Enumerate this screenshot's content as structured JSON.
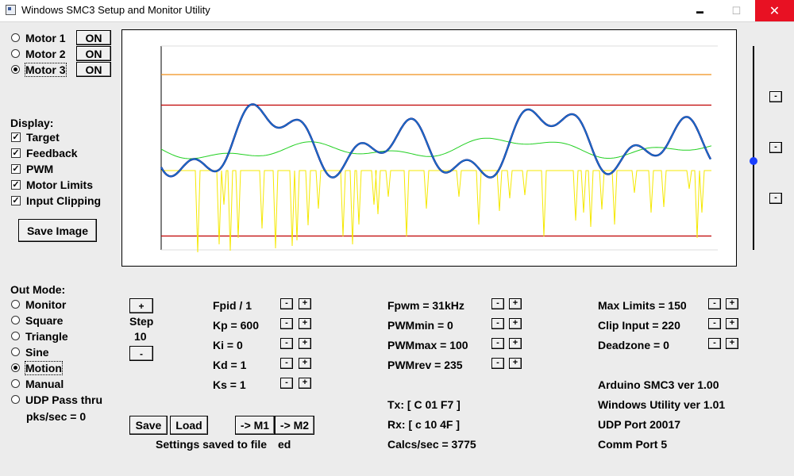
{
  "window": {
    "title": "Windows SMC3 Setup and Monitor Utility",
    "minimize_glyph": "▬",
    "maximize_glyph": "☐",
    "close_glyph": "✕"
  },
  "motors": [
    {
      "label": "Motor 1",
      "selected": false,
      "button": "ON"
    },
    {
      "label": "Motor 2",
      "selected": false,
      "button": "ON"
    },
    {
      "label": "Motor 3",
      "selected": true,
      "button": "ON"
    }
  ],
  "display": {
    "heading": "Display:",
    "items": [
      {
        "label": "Target",
        "checked": true
      },
      {
        "label": "Feedback",
        "checked": true
      },
      {
        "label": "PWM",
        "checked": true
      },
      {
        "label": "Motor Limits",
        "checked": true
      },
      {
        "label": "Input Clipping",
        "checked": true
      }
    ],
    "save_image": "Save Image"
  },
  "out_mode": {
    "heading": "Out Mode:",
    "items": [
      {
        "label": "Monitor",
        "selected": false
      },
      {
        "label": "Square",
        "selected": false
      },
      {
        "label": "Triangle",
        "selected": false
      },
      {
        "label": "Sine",
        "selected": false
      },
      {
        "label": "Motion",
        "selected": true
      },
      {
        "label": "Manual",
        "selected": false
      },
      {
        "label": "UDP Pass thru",
        "selected": false
      }
    ],
    "pks": "pks/sec = 0"
  },
  "step": {
    "plus": "+",
    "label": "Step",
    "value": "10",
    "minus": "-"
  },
  "pid_params": [
    "Fpid / 1",
    "Kp = 600",
    "Ki = 0",
    "Kd = 1",
    "Ks = 1"
  ],
  "pwm_params": [
    "Fpwm = 31kHz",
    "PWMmin = 0",
    "PWMmax = 100",
    "PWMrev = 235"
  ],
  "limit_params": [
    "Max Limits = 150",
    "Clip Input = 220",
    "Deadzone = 0"
  ],
  "adj": {
    "minus": "-",
    "plus": "+"
  },
  "comm": {
    "tx": "Tx: [ C 01 F7 ]",
    "rx": "Rx: [ c 10 4F ]",
    "calcs": "Calcs/sec = 3775"
  },
  "info": [
    "Arduino SMC3 ver 1.00",
    "Windows Utility ver 1.01",
    "UDP Port 20017",
    "Comm Port 5"
  ],
  "buttons": {
    "save": "Save",
    "load": "Load",
    "to_m1": "-> M1",
    "to_m2": "-> M2"
  },
  "status": {
    "text": "Settings saved to file",
    "tail": "ed"
  },
  "right_controls": {
    "minus": "-"
  },
  "colors": {
    "motor_limits": "#c00000",
    "input_clipping": "#f0901a",
    "target": "#1f7fd0",
    "feedback": "#000080",
    "pwm": "#f5e800",
    "green": "#22d022"
  },
  "chart_data": {
    "type": "line",
    "series": [
      {
        "name": "Motor Limits",
        "values": [
          -150,
          150
        ]
      },
      {
        "name": "Input Clipping",
        "values": [
          -220,
          220
        ]
      }
    ]
  }
}
